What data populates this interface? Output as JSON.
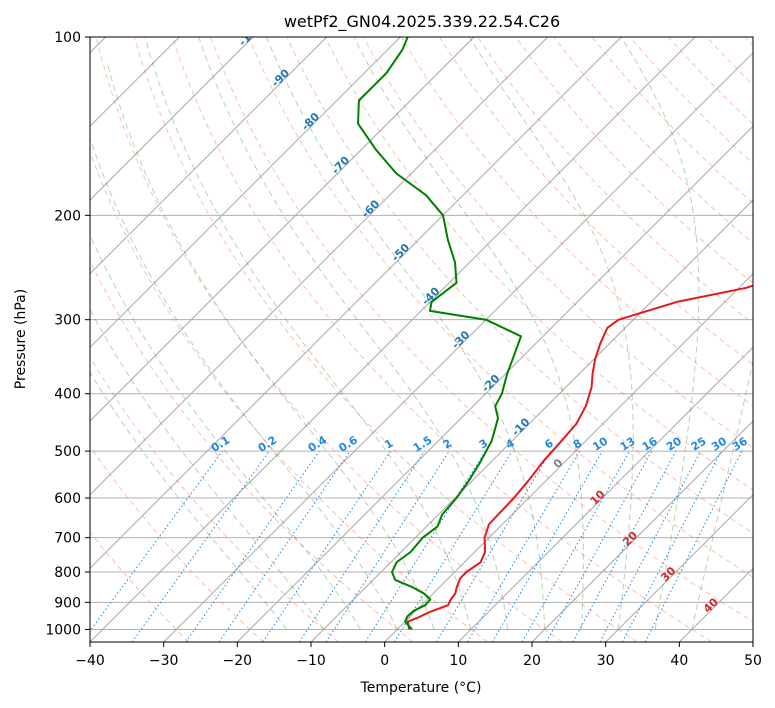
{
  "chart_data": {
    "type": "line",
    "subtype": "skew-t log-p",
    "title": "wetPf2_GN04.2025.339.22.54.C26",
    "xlabel": "Temperature (°C)",
    "ylabel": "Pressure (hPa)",
    "xlim": [
      -40,
      50
    ],
    "ylim": [
      1050,
      100
    ],
    "x_ticks": [
      "−40",
      "−30",
      "−20",
      "−10",
      "0",
      "10",
      "20",
      "30",
      "40",
      "50"
    ],
    "y_ticks": [
      1000,
      900,
      800,
      700,
      600,
      500,
      400,
      300,
      200,
      100
    ],
    "y_tick_labels": [
      "1000",
      "900",
      "800",
      "700",
      "600",
      "500",
      "400",
      "300",
      "200",
      "100"
    ],
    "grid": true,
    "colors": {
      "temperature": "#e31a1c",
      "dewpoint": "#008000",
      "isotherm_label": "#1f77b4",
      "mixing_ratio": "#1e88e5",
      "moist_adiabat": "#2e7d32",
      "dry_adiabat": "#ff6f4d"
    },
    "isotherm_labels": [
      {
        "t": -100,
        "text": "-100"
      },
      {
        "t": -90,
        "text": "-90"
      },
      {
        "t": -80,
        "text": "-80"
      },
      {
        "t": -70,
        "text": "-70"
      },
      {
        "t": -60,
        "text": "-60"
      },
      {
        "t": -50,
        "text": "-50"
      },
      {
        "t": -40,
        "text": "-40"
      },
      {
        "t": -30,
        "text": "-30"
      },
      {
        "t": -20,
        "text": "-20"
      },
      {
        "t": -10,
        "text": "-10"
      },
      {
        "t": 0,
        "text": "0"
      },
      {
        "t": 10,
        "text": "10"
      },
      {
        "t": 20,
        "text": "20"
      },
      {
        "t": 30,
        "text": "30"
      },
      {
        "t": 40,
        "text": "40"
      }
    ],
    "mixing_ratio_labels": [
      "0.1",
      "0.2",
      "0.4",
      "0.6",
      "1",
      "1.5",
      "2",
      "3",
      "4",
      "6",
      "8",
      "10",
      "13",
      "16",
      "20",
      "25",
      "30",
      "36"
    ],
    "series": [
      {
        "name": "Temperature",
        "color": "#e31a1c",
        "points": [
          [
            1000,
            1.6
          ],
          [
            985,
            1.0
          ],
          [
            970,
            0.4
          ],
          [
            955,
            1.2
          ],
          [
            935,
            2.0
          ],
          [
            910,
            3.6
          ],
          [
            890,
            3.2
          ],
          [
            870,
            3.0
          ],
          [
            850,
            2.4
          ],
          [
            820,
            1.6
          ],
          [
            800,
            1.6
          ],
          [
            770,
            2.2
          ],
          [
            740,
            1.4
          ],
          [
            700,
            -0.6
          ],
          [
            665,
            -1.8
          ],
          [
            640,
            -1.9
          ],
          [
            600,
            -2.0
          ],
          [
            560,
            -2.4
          ],
          [
            520,
            -3.0
          ],
          [
            480,
            -3.3
          ],
          [
            450,
            -3.6
          ],
          [
            420,
            -4.7
          ],
          [
            390,
            -6.5
          ],
          [
            370,
            -8.2
          ],
          [
            350,
            -9.8
          ],
          [
            330,
            -11.2
          ],
          [
            310,
            -12.4
          ],
          [
            300,
            -12.0
          ],
          [
            280,
            -6.5
          ],
          [
            265,
            1.0
          ],
          [
            250,
            5.0
          ],
          [
            230,
            10.0
          ],
          [
            200,
            16.0
          ],
          [
            180,
            19.5
          ],
          [
            160,
            24.0
          ],
          [
            140,
            31.0
          ],
          [
            120,
            38.0
          ],
          [
            100,
            46.0
          ]
        ]
      },
      {
        "name": "Dewpoint",
        "color": "#008000",
        "points": [
          [
            1000,
            2.0
          ],
          [
            970,
            0.0
          ],
          [
            950,
            -0.4
          ],
          [
            930,
            -0.3
          ],
          [
            910,
            0.5
          ],
          [
            890,
            0.4
          ],
          [
            870,
            -1.2
          ],
          [
            850,
            -3.5
          ],
          [
            825,
            -7.0
          ],
          [
            800,
            -8.5
          ],
          [
            770,
            -9.2
          ],
          [
            740,
            -8.7
          ],
          [
            700,
            -9.0
          ],
          [
            670,
            -8.5
          ],
          [
            640,
            -9.5
          ],
          [
            600,
            -9.8
          ],
          [
            560,
            -10.5
          ],
          [
            520,
            -11.5
          ],
          [
            480,
            -12.8
          ],
          [
            440,
            -15.0
          ],
          [
            420,
            -17.0
          ],
          [
            400,
            -17.8
          ],
          [
            370,
            -19.8
          ],
          [
            350,
            -21.0
          ],
          [
            320,
            -23.0
          ],
          [
            300,
            -30.0
          ],
          [
            290,
            -38.8
          ],
          [
            280,
            -39.8
          ],
          [
            260,
            -39.0
          ],
          [
            240,
            -42.0
          ],
          [
            220,
            -46.0
          ],
          [
            200,
            -50.0
          ],
          [
            185,
            -55.0
          ],
          [
            170,
            -62.0
          ],
          [
            155,
            -68.0
          ],
          [
            140,
            -74.0
          ],
          [
            128,
            -77.0
          ],
          [
            115,
            -77.0
          ],
          [
            105,
            -78.0
          ],
          [
            100,
            -79.0
          ]
        ]
      }
    ]
  }
}
